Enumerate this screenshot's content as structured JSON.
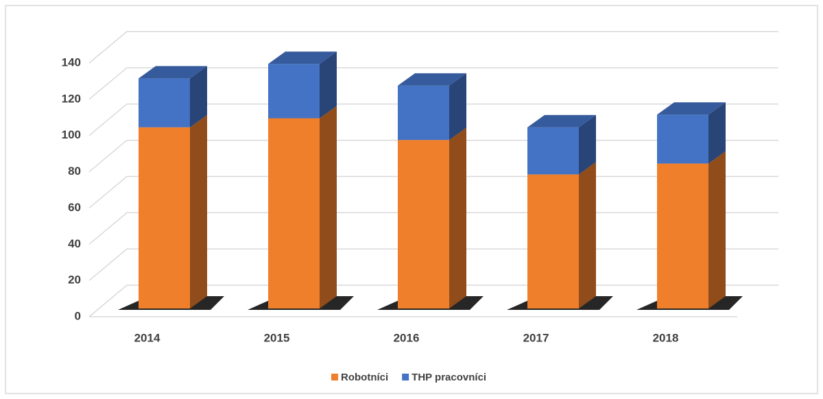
{
  "chart_data": {
    "type": "bar3d_stacked",
    "categories": [
      "2014",
      "2015",
      "2016",
      "2017",
      "2018"
    ],
    "series": [
      {
        "name": "Robotníci",
        "color": "#f07f2c",
        "values": [
          100,
          105,
          93,
          74,
          80
        ]
      },
      {
        "name": "THP pracovníci",
        "color": "#4472c4",
        "values": [
          27,
          30,
          30,
          26,
          27
        ]
      }
    ],
    "ylim": [
      0,
      140
    ],
    "yticks": [
      0,
      20,
      40,
      60,
      80,
      100,
      120,
      140
    ],
    "grid": true,
    "legend": "bottom"
  }
}
